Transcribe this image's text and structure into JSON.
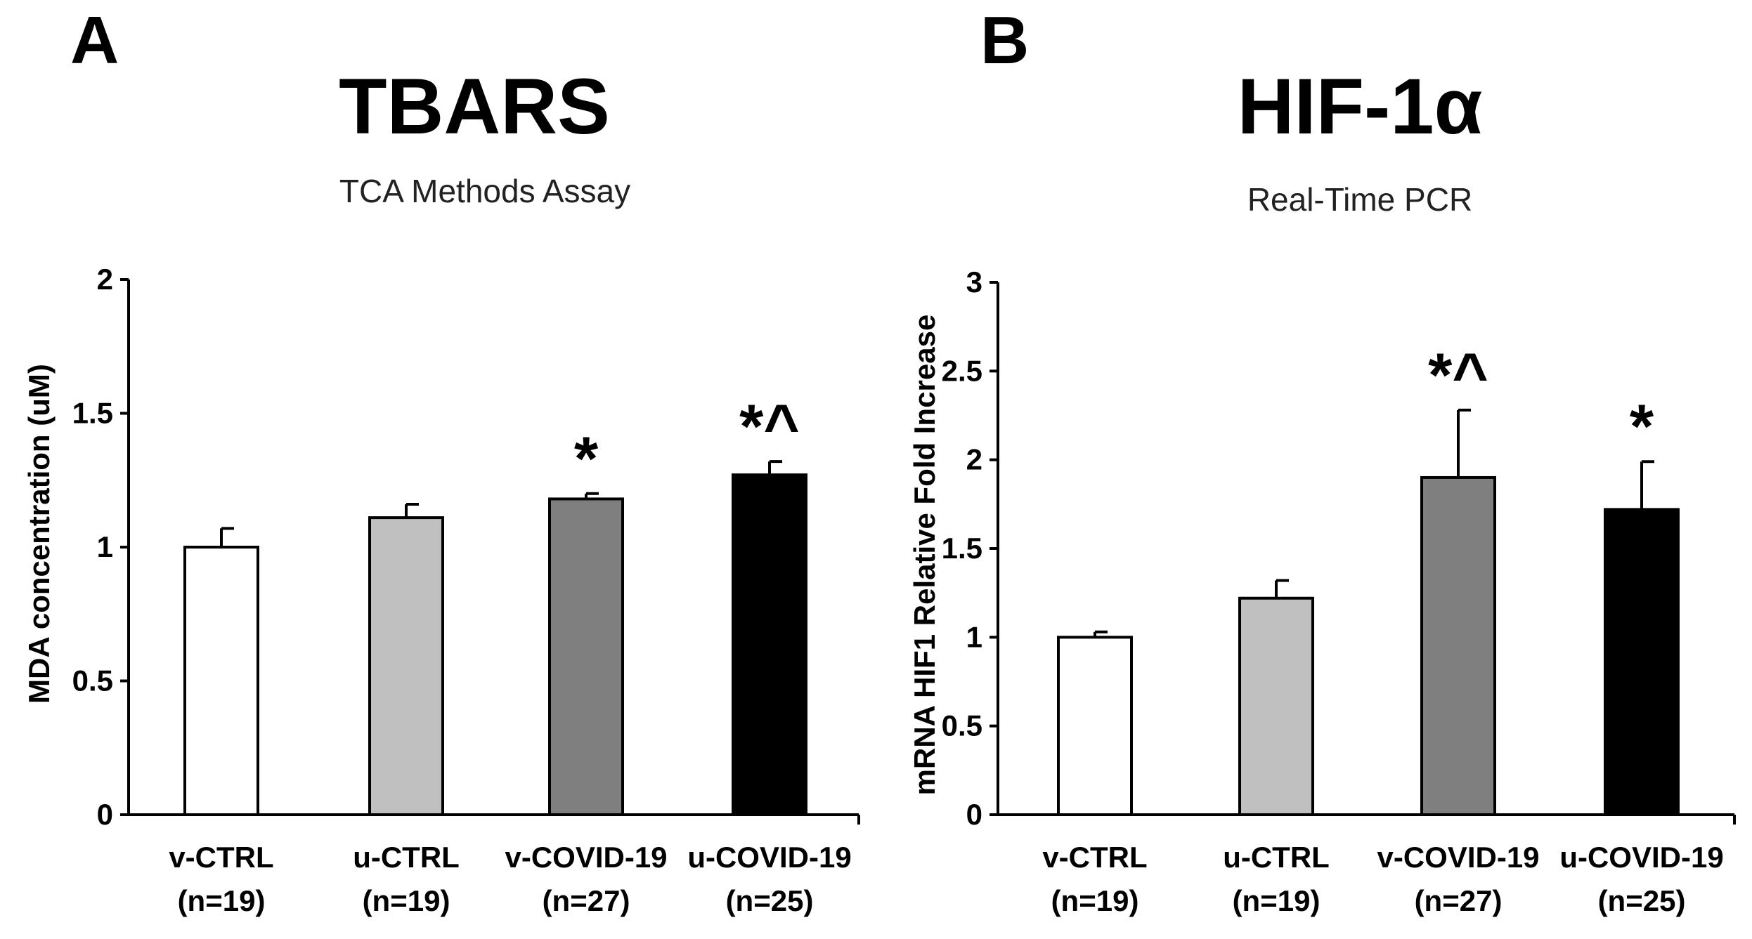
{
  "chart_data": [
    {
      "panel": "A",
      "type": "bar",
      "title": "TBARS",
      "subtitle": "TCA Methods Assay",
      "xlabel": "",
      "ylabel": "MDA concentration (uM)",
      "ylim": [
        0,
        2
      ],
      "yticks": [
        0,
        0.5,
        1,
        1.5,
        2
      ],
      "ytick_labels": [
        "0",
        "0.5",
        "1",
        "1.5",
        "2"
      ],
      "categories": [
        {
          "name": "v-CTRL",
          "n": "(n=19)"
        },
        {
          "name": "u-CTRL",
          "n": "(n=19)"
        },
        {
          "name": "v-COVID-19",
          "n": "(n=27)"
        },
        {
          "name": "u-COVID-19",
          "n": "(n=25)"
        }
      ],
      "values": [
        1.0,
        1.11,
        1.18,
        1.27
      ],
      "errors": [
        0.07,
        0.05,
        0.02,
        0.05
      ],
      "colors": [
        "#ffffff",
        "#c0c0c0",
        "#7f7f7f",
        "#000000"
      ],
      "annotations": [
        "",
        "",
        "*",
        "*^"
      ],
      "grid": false
    },
    {
      "panel": "B",
      "type": "bar",
      "title": "HIF-1α",
      "subtitle": "Real-Time PCR",
      "xlabel": "",
      "ylabel": "mRNA HIF1 Relative Fold Increase",
      "ylim": [
        0,
        3
      ],
      "yticks": [
        0,
        0.5,
        1,
        1.5,
        2,
        2.5,
        3
      ],
      "ytick_labels": [
        "0",
        "0.5",
        "1",
        "1.5",
        "2",
        "2.5",
        "3"
      ],
      "categories": [
        {
          "name": "v-CTRL",
          "n": "(n=19)"
        },
        {
          "name": "u-CTRL",
          "n": "(n=19)"
        },
        {
          "name": "v-COVID-19",
          "n": "(n=27)"
        },
        {
          "name": "u-COVID-19",
          "n": "(n=25)"
        }
      ],
      "values": [
        1.0,
        1.22,
        1.9,
        1.72
      ],
      "errors": [
        0.03,
        0.1,
        0.38,
        0.27
      ],
      "colors": [
        "#ffffff",
        "#c0c0c0",
        "#7f7f7f",
        "#000000"
      ],
      "annotations": [
        "",
        "",
        "*^",
        "*"
      ],
      "grid": false
    }
  ]
}
